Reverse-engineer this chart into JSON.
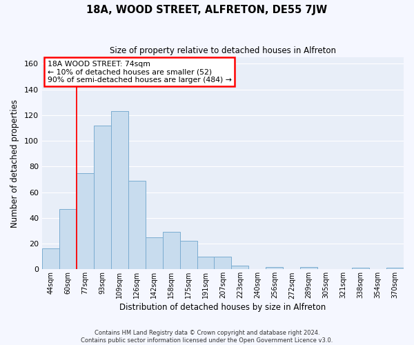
{
  "title": "18A, WOOD STREET, ALFRETON, DE55 7JW",
  "subtitle": "Size of property relative to detached houses in Alfreton",
  "xlabel": "Distribution of detached houses by size in Alfreton",
  "ylabel": "Number of detached properties",
  "bar_color": "#c8dcee",
  "bar_edge_color": "#7aacd0",
  "background_color": "#e8eef8",
  "grid_color": "#ffffff",
  "fig_background": "#f5f7ff",
  "categories": [
    "44sqm",
    "60sqm",
    "77sqm",
    "93sqm",
    "109sqm",
    "126sqm",
    "142sqm",
    "158sqm",
    "175sqm",
    "191sqm",
    "207sqm",
    "223sqm",
    "240sqm",
    "256sqm",
    "272sqm",
    "289sqm",
    "305sqm",
    "321sqm",
    "338sqm",
    "354sqm",
    "370sqm"
  ],
  "values": [
    16,
    47,
    75,
    112,
    123,
    69,
    25,
    29,
    22,
    10,
    10,
    3,
    0,
    2,
    0,
    2,
    0,
    0,
    1,
    0,
    1
  ],
  "ylim": [
    0,
    165
  ],
  "yticks": [
    0,
    20,
    40,
    60,
    80,
    100,
    120,
    140,
    160
  ],
  "property_line_x": 1.5,
  "annotation_line1": "18A WOOD STREET: 74sqm",
  "annotation_line2": "← 10% of detached houses are smaller (52)",
  "annotation_line3": "90% of semi-detached houses are larger (484) →",
  "footer_line1": "Contains HM Land Registry data © Crown copyright and database right 2024.",
  "footer_line2": "Contains public sector information licensed under the Open Government Licence v3.0."
}
